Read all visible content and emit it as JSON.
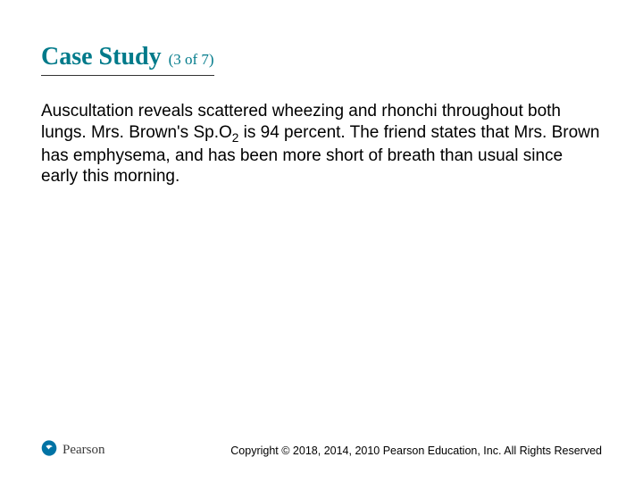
{
  "colors": {
    "title": "#007a8a",
    "text": "#000000",
    "underline": "#333333",
    "brand_text": "#3a3a3a",
    "brand_mark_fill": "#0073a5",
    "brand_mark_chevron": "#ffffff",
    "background": "#ffffff"
  },
  "typography": {
    "title_fontsize": 28,
    "subtitle_fontsize": 17,
    "body_fontsize": 19,
    "brand_fontsize": 15,
    "copyright_fontsize": 12.5,
    "title_family": "Times New Roman",
    "body_family": "Arial"
  },
  "header": {
    "title": "Case Study",
    "subtitle": "(3 of 7)"
  },
  "body": {
    "paragraph_html": "Auscultation reveals scattered wheezing and rhonchi throughout both lungs. Mrs. Brown's Sp.O<sub>2</sub> is 94 percent. The friend states that Mrs. Brown has emphysema, and has been more short of breath than usual since early this morning."
  },
  "footer": {
    "brand": "Pearson",
    "copyright": "Copyright © 2018, 2014, 2010 Pearson Education, Inc. All Rights Reserved"
  }
}
